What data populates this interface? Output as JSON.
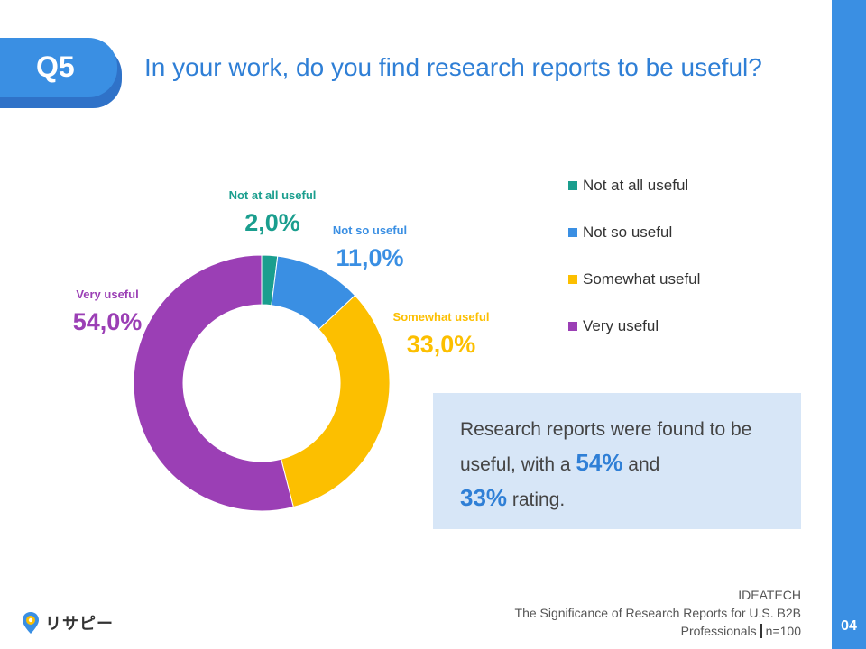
{
  "header": {
    "badge": "Q5",
    "title": "In your work, do you find research reports to be useful?"
  },
  "colors": {
    "accent": "#3a8fe3",
    "title": "#2f7fd6",
    "box": "#d7e6f7"
  },
  "chart_data": {
    "type": "pie",
    "donut": true,
    "categories": [
      "Not at all useful",
      "Not so useful",
      "Somewhat useful",
      "Very useful"
    ],
    "values": [
      2.0,
      11.0,
      33.0,
      54.0
    ],
    "value_labels": [
      "2,0%",
      "11,0%",
      "33,0%",
      "54,0%"
    ],
    "colors": [
      "#1a9e8e",
      "#3a8fe3",
      "#fcbf00",
      "#9b3fb5"
    ],
    "legend_position": "right"
  },
  "summary": {
    "part1": "Research reports were found to be useful, with a ",
    "value1": "54%",
    "part2": " and ",
    "value2": "33%",
    "part3": " rating."
  },
  "footer": {
    "source_line1": "IDEATECH",
    "source_line2": "The Significance of Research Reports for U.S. B2B",
    "source_line3": "Professionals",
    "sample": "n=100",
    "page": "04"
  },
  "logo": {
    "text": "リサピー"
  }
}
